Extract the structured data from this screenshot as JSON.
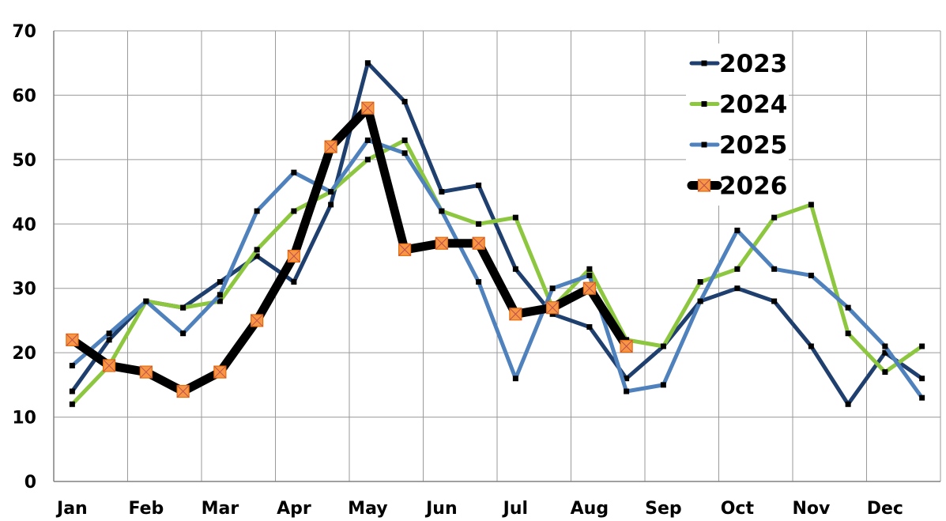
{
  "chart_data": {
    "type": "line",
    "title": "",
    "xlabel": "",
    "ylabel": "",
    "ylim": [
      0,
      70
    ],
    "yticks": [
      0,
      10,
      20,
      30,
      40,
      50,
      60,
      70
    ],
    "month_labels": [
      "Jan",
      "Feb",
      "Mar",
      "Apr",
      "May",
      "Jun",
      "Jul",
      "Aug",
      "Sep",
      "Oct",
      "Nov",
      "Dec"
    ],
    "x_points": [
      "Jan",
      "Jan 2",
      "Feb",
      "Feb 2",
      "Mar",
      "Mar 2",
      "Apr",
      "Apr 2",
      "May",
      "May 2",
      "Jun",
      "Jun 2",
      "Jul",
      "Jul 2",
      "Aug",
      "Aug 2",
      "Sep",
      "Sep 2",
      "Oct",
      "Oct 2",
      "Nov",
      "Nov 2",
      "Dec",
      "Dec 2"
    ],
    "grid": true,
    "legend_position": "top-right",
    "series": [
      {
        "name": "2023",
        "color": "#1f3f6e",
        "marker": "small-square",
        "values": [
          14,
          22,
          28,
          27,
          31,
          35,
          31,
          43,
          65,
          59,
          45,
          46,
          33,
          26,
          24,
          16,
          21,
          28,
          30,
          28,
          21,
          12,
          20,
          16
        ]
      },
      {
        "name": "2024",
        "color": "#8dc63f",
        "marker": "small-square",
        "values": [
          12,
          18,
          28,
          27,
          28,
          36,
          42,
          45,
          50,
          53,
          42,
          40,
          41,
          27,
          33,
          22,
          21,
          31,
          33,
          41,
          43,
          23,
          17,
          21
        ]
      },
      {
        "name": "2025",
        "color": "#4f81bd",
        "marker": "small-square",
        "values": [
          18,
          23,
          28,
          23,
          29,
          42,
          48,
          45,
          53,
          51,
          42,
          31,
          16,
          30,
          32,
          14,
          15,
          28,
          39,
          33,
          32,
          27,
          21,
          13
        ]
      },
      {
        "name": "2026",
        "color": "#000000",
        "marker": "orange-x-square",
        "values": [
          22,
          18,
          17,
          14,
          17,
          25,
          35,
          52,
          58,
          36,
          37,
          37,
          26,
          27,
          30,
          21
        ]
      }
    ]
  }
}
